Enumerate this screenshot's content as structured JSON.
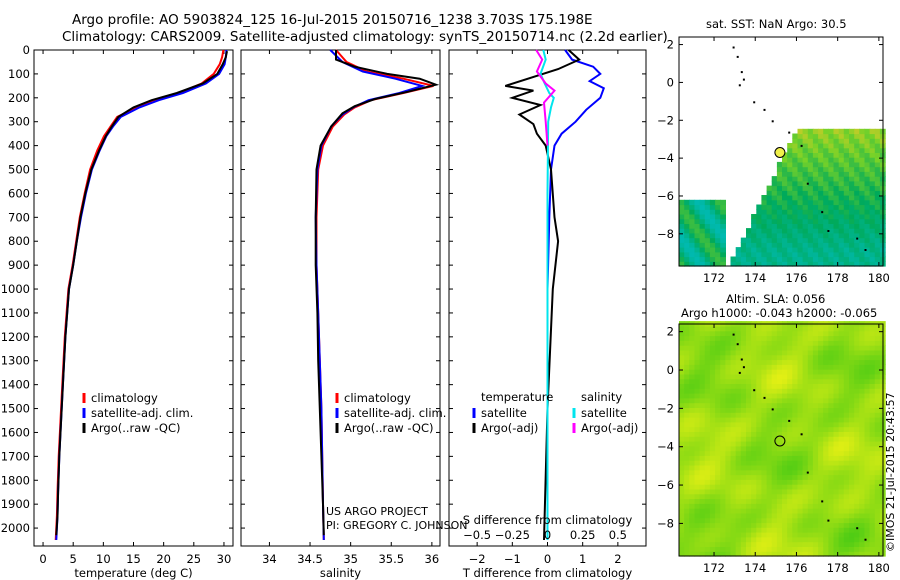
{
  "header": {
    "line1": "Argo profile: AO 5903824_125 16-Jul-2015 20150716_1238 3.703S 175.198E",
    "line2": "Climatology: CARS2009. Satellite-adjusted climatology: synTS_20150714.nc (2.2d earlier)"
  },
  "project": {
    "line1": "US ARGO PROJECT",
    "line2": "PI: GREGORY C. JOHNSON"
  },
  "stamp": "©IMOS 21-Jul-2015 20:43:57",
  "map_sst": {
    "title": "sat. SST: NaN Argo: 30.5"
  },
  "map_sla": {
    "title1": "Altim. SLA: 0.056",
    "title2": "Argo h1000: -0.043 h2000: -0.065"
  },
  "colors": {
    "climatology": "#ff0000",
    "satellite": "#0000ff",
    "argo": "#000000",
    "sal_satellite": "#00e5ee",
    "sal_argo": "#ff00ff"
  },
  "chart_data": [
    {
      "type": "line",
      "name": "temperature-profile",
      "xlabel": "temperature (deg C)",
      "ylabel": "",
      "xlim": [
        -1.5,
        31.5
      ],
      "ylim": [
        2075,
        0
      ],
      "xticks": [
        0,
        5,
        10,
        15,
        20,
        25,
        30
      ],
      "yticks": [
        0,
        100,
        200,
        300,
        400,
        500,
        600,
        700,
        800,
        900,
        1000,
        1100,
        1200,
        1300,
        1400,
        1500,
        1600,
        1700,
        1800,
        1900,
        2000
      ],
      "legend": [
        "climatology",
        "satellite-adj. clim.",
        "Argo(..raw -QC)"
      ],
      "series": [
        {
          "name": "climatology",
          "color": "#ff0000",
          "x": [
            29.9,
            29.7,
            29.3,
            28.3,
            26.3,
            22.5,
            18.5,
            15.5,
            12.3,
            11.2,
            10.1,
            9.0,
            7.8,
            6.9,
            6.1,
            5.5,
            4.9,
            4.2,
            3.6,
            3.2,
            2.9,
            2.6,
            2.4,
            2.3,
            2.1
          ],
          "y": [
            0,
            30,
            60,
            100,
            140,
            180,
            210,
            240,
            280,
            320,
            360,
            420,
            500,
            600,
            700,
            800,
            900,
            1000,
            1200,
            1400,
            1550,
            1700,
            1850,
            1950,
            2050
          ]
        },
        {
          "name": "satellite-adj. clim.",
          "color": "#0000ff",
          "x": [
            30.4,
            30.3,
            30.1,
            29.2,
            27.0,
            23.2,
            19.2,
            16.0,
            12.9,
            11.6,
            10.5,
            9.4,
            8.1,
            7.1,
            6.3,
            5.6,
            5.0,
            4.3,
            3.7,
            3.3,
            3.0,
            2.7,
            2.5,
            2.4,
            2.2
          ],
          "y": [
            0,
            30,
            60,
            100,
            140,
            180,
            210,
            240,
            280,
            320,
            360,
            420,
            500,
            600,
            700,
            800,
            900,
            1000,
            1200,
            1400,
            1550,
            1700,
            1850,
            1950,
            2050
          ]
        },
        {
          "name": "Argo(..raw -QC)",
          "color": "#000000",
          "x": [
            30.5,
            30.3,
            29.8,
            28.9,
            26.5,
            22.2,
            18.0,
            15.0,
            12.5,
            11.4,
            10.4,
            9.3,
            8.0,
            7.0,
            6.2,
            5.6,
            5.0,
            4.3,
            3.7,
            3.3,
            3.0,
            2.7,
            2.5,
            2.4,
            2.2
          ],
          "y": [
            5,
            30,
            60,
            100,
            140,
            180,
            210,
            240,
            280,
            320,
            360,
            420,
            500,
            600,
            700,
            800,
            900,
            1000,
            1200,
            1400,
            1550,
            1700,
            1850,
            1950,
            2030
          ]
        }
      ]
    },
    {
      "type": "line",
      "name": "salinity-profile",
      "xlabel": "salinity",
      "ylabel": "",
      "xlim": [
        33.65,
        36.1
      ],
      "ylim": [
        2075,
        0
      ],
      "xticks": [
        34,
        34.5,
        35,
        35.5,
        36
      ],
      "xticklabels": [
        "34",
        "34.5",
        "35",
        "35.5",
        "36"
      ],
      "legend": [
        "climatology",
        "satellite-adj. clim.",
        "Argo(..raw -QC)"
      ],
      "series": [
        {
          "name": "climatology",
          "color": "#ff0000",
          "x": [
            34.82,
            34.95,
            35.2,
            35.65,
            36.02,
            35.65,
            35.25,
            35.05,
            34.92,
            34.78,
            34.66,
            34.6,
            34.58,
            34.58,
            34.6,
            34.62,
            34.64,
            34.65,
            34.66,
            34.67
          ],
          "y": [
            0,
            50,
            90,
            120,
            150,
            180,
            210,
            240,
            270,
            320,
            400,
            500,
            700,
            900,
            1100,
            1300,
            1500,
            1700,
            1900,
            2050
          ]
        },
        {
          "name": "satellite-adj. clim.",
          "color": "#0000ff",
          "x": [
            34.75,
            34.9,
            35.15,
            35.55,
            35.88,
            35.6,
            35.22,
            35.03,
            34.9,
            34.76,
            34.64,
            34.59,
            34.57,
            34.58,
            34.6,
            34.62,
            34.64,
            34.65,
            34.66,
            34.67
          ],
          "y": [
            0,
            50,
            90,
            120,
            150,
            180,
            210,
            240,
            270,
            320,
            400,
            500,
            700,
            900,
            1100,
            1300,
            1500,
            1700,
            1900,
            2050
          ]
        },
        {
          "name": "Argo(..raw -QC)",
          "color": "#000000",
          "x": [
            34.82,
            34.82,
            35.05,
            35.45,
            35.85,
            36.05,
            35.7,
            35.3,
            35.05,
            34.9,
            34.76,
            34.63,
            34.58,
            34.57,
            34.57,
            34.59,
            34.6,
            34.62,
            34.64,
            34.66,
            34.67
          ],
          "y": [
            0,
            40,
            70,
            100,
            120,
            145,
            175,
            205,
            235,
            265,
            320,
            400,
            500,
            700,
            900,
            1100,
            1300,
            1500,
            1700,
            1900,
            2030
          ]
        }
      ]
    },
    {
      "type": "line",
      "name": "difference-profile",
      "xlabel": "T difference from climatology",
      "xlabel_top": "S difference from climatology",
      "ylabel": "",
      "xlim": [
        -2.8,
        2.8
      ],
      "ylim": [
        2075,
        0
      ],
      "xticks": [
        -2,
        -1,
        0,
        1,
        2
      ],
      "s_ticks": [
        -0.5,
        -0.25,
        0,
        0.25,
        0.5
      ],
      "s_ticklabels": [
        "-0.5",
        "-0.25",
        "0",
        "0.25",
        "0.5"
      ],
      "legend": {
        "temperature": [
          "satellite",
          "Argo(-adj)"
        ],
        "salinity": [
          "satellite",
          "Argo(-adj)"
        ]
      },
      "legend_headings": [
        "temperature",
        "salinity"
      ],
      "series": [
        {
          "name": "temperature satellite",
          "color": "#0000ff",
          "x": [
            0.5,
            0.7,
            1.3,
            1.5,
            1.2,
            1.6,
            1.5,
            1.1,
            0.8,
            0.4,
            0.2,
            0.1,
            0.05,
            0.0,
            0.0,
            0.0
          ],
          "y": [
            0,
            40,
            70,
            100,
            130,
            160,
            200,
            250,
            300,
            350,
            400,
            500,
            700,
            1000,
            1500,
            2050
          ]
        },
        {
          "name": "temperature Argo(-adj)",
          "color": "#000000",
          "x": [
            0.6,
            0.9,
            0.3,
            -1.2,
            -0.4,
            -1.0,
            -0.2,
            -0.8,
            -0.4,
            -0.3,
            -0.05,
            0.1,
            0.2,
            0.3,
            0.15,
            0.0,
            -0.1
          ],
          "y": [
            0,
            40,
            80,
            150,
            170,
            200,
            230,
            270,
            310,
            350,
            400,
            500,
            700,
            800,
            1000,
            1500,
            2050
          ]
        },
        {
          "name": "salinity satellite",
          "color": "#00e5ee",
          "x": [
            -0.12,
            -0.05,
            -0.2,
            -0.08,
            0.05,
            0.18,
            0.1,
            0.02,
            0.0,
            0.0
          ],
          "y": [
            0,
            40,
            100,
            140,
            180,
            200,
            240,
            300,
            600,
            2050
          ]
        },
        {
          "name": "salinity Argo(-adj)",
          "color": "#ff00ff",
          "x": [
            -0.32,
            -0.15,
            -0.3,
            -0.05,
            0.2,
            -0.1,
            -0.05,
            0.0
          ],
          "y": [
            0,
            40,
            90,
            140,
            170,
            220,
            300,
            400
          ]
        }
      ]
    },
    {
      "type": "heatmap",
      "name": "sst-map",
      "title": "sat. SST: NaN Argo: 30.5",
      "xlim": [
        170.3,
        180.2
      ],
      "ylim": [
        -9.7,
        2.4
      ],
      "xticks": [
        172,
        174,
        176,
        178,
        180
      ],
      "yticks": [
        -8,
        -6,
        -4,
        -2,
        0,
        2
      ],
      "float_position": {
        "lon": 175.198,
        "lat": -3.703
      }
    },
    {
      "type": "heatmap",
      "name": "sla-map",
      "title": "Altim. SLA: 0.056",
      "xlim": [
        170.3,
        180.2
      ],
      "ylim": [
        -9.7,
        2.4
      ],
      "xticks": [
        172,
        174,
        176,
        178,
        180
      ],
      "yticks": [
        -8,
        -6,
        -4,
        -2,
        0,
        2
      ],
      "float_position": {
        "lon": 175.198,
        "lat": -3.703
      }
    }
  ]
}
